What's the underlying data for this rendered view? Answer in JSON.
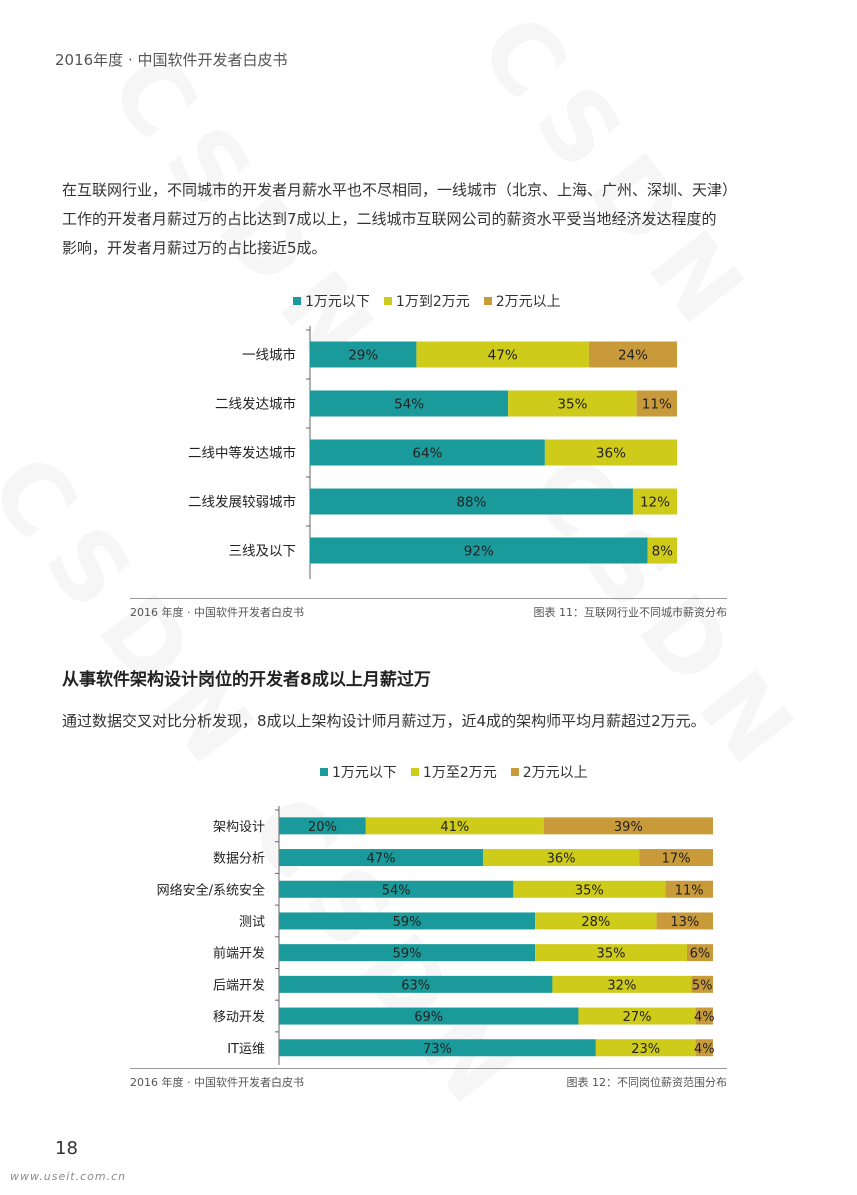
{
  "header": {
    "title": "2016年度 · 中国软件开发者白皮书"
  },
  "watermark": "CSDN",
  "intro_paragraph": {
    "line1": "在互联网行业，不同城市的开发者月薪水平也不尽相同，一线城市（北京、上海、广州、深圳、天津）",
    "line2": "工作的开发者月薪过万的占比达到7成以上，二线城市互联网公司的薪资水平受当地经济发达程度的",
    "line3": "影响，开发者月薪过万的占比接近5成。"
  },
  "section2": {
    "heading": "从事软件架构设计岗位的开发者8成以上月薪过万",
    "paragraph": "通过数据交叉对比分析发现，8成以上架构设计师月薪过万，近4成的架构师平均月薪超过2万元。"
  },
  "colors": {
    "teal": "#1a9a9a",
    "yellow": "#cfcb1a",
    "gold": "#c99a3a"
  },
  "chart_data": [
    {
      "type": "bar",
      "orientation": "horizontal",
      "stacked": true,
      "percent": true,
      "legend_position": "top",
      "categories": [
        "一线城市",
        "二线发达城市",
        "二线中等发达城市",
        "二线发展较弱城市",
        "三线及以下"
      ],
      "series": [
        {
          "name": "1万元以下",
          "color": "#1a9a9a",
          "values": [
            29,
            54,
            64,
            88,
            92
          ]
        },
        {
          "name": "1万到2万元",
          "color": "#cfcb1a",
          "values": [
            47,
            35,
            36,
            12,
            8
          ]
        },
        {
          "name": "2万元以上",
          "color": "#c99a3a",
          "values": [
            24,
            11,
            0,
            0,
            0
          ]
        }
      ],
      "xlim": [
        0,
        100
      ],
      "footer_left": "2016 年度 · 中国软件开发者白皮书",
      "caption": "图表 11：互联网行业不同城市薪资分布"
    },
    {
      "type": "bar",
      "orientation": "horizontal",
      "stacked": true,
      "percent": true,
      "legend_position": "top",
      "categories": [
        "架构设计",
        "数据分析",
        "网络安全/系统安全",
        "测试",
        "前端开发",
        "后端开发",
        "移动开发",
        "IT运维"
      ],
      "series": [
        {
          "name": "1万元以下",
          "color": "#1a9a9a",
          "values": [
            20,
            47,
            54,
            59,
            59,
            63,
            69,
            73
          ]
        },
        {
          "name": "1万至2万元",
          "color": "#cfcb1a",
          "values": [
            41,
            36,
            35,
            28,
            35,
            32,
            27,
            23
          ]
        },
        {
          "name": "2万元以上",
          "color": "#c99a3a",
          "values": [
            39,
            17,
            11,
            13,
            6,
            5,
            4,
            4
          ]
        }
      ],
      "xlim": [
        0,
        100
      ],
      "footer_left": "2016 年度 · 中国软件开发者白皮书",
      "caption": "图表 12：不同岗位薪资范围分布"
    }
  ],
  "page_number": "18",
  "site_url": "www.useit.com.cn"
}
